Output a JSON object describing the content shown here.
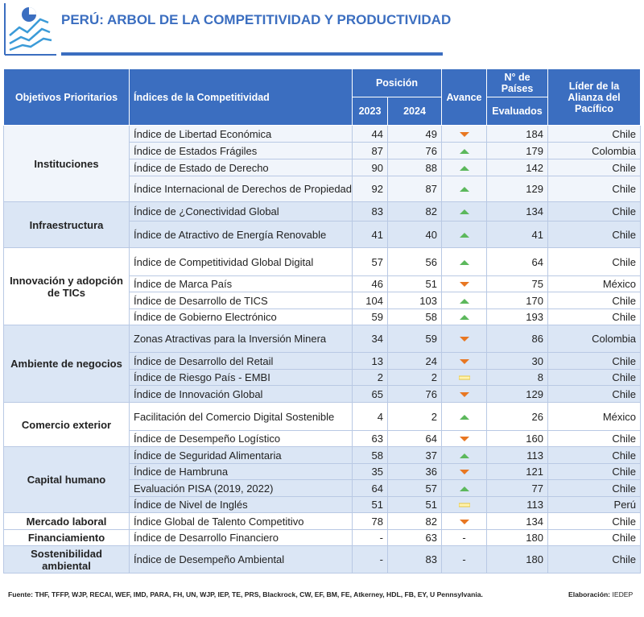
{
  "header": {
    "title": "PERÚ: ARBOL DE LA COMPETITIVIDAD Y PRODUCTIVIDAD"
  },
  "table": {
    "columns": {
      "objective": "Objetivos Prioritarios",
      "index": "Índices de la Competitividad",
      "position": "Posición",
      "y2023": "2023",
      "y2024": "2024",
      "avance": "Avance",
      "countries_top": "N° de Países",
      "countries_bottom": "Evaluados",
      "leader": "Líder de la Alianza del Pacífico"
    },
    "groups": [
      {
        "objective": "Instituciones",
        "rows": [
          {
            "index": "Índice de Libertad Económica",
            "y2023": 44,
            "y2024": 49,
            "countries": 184,
            "leader": "Chile"
          },
          {
            "index": "Índice de Estados Frágiles",
            "y2023": 87,
            "y2024": 76,
            "countries": 179,
            "leader": "Colombia"
          },
          {
            "index": "Índice de Estado de Derecho",
            "y2023": 90,
            "y2024": 88,
            "countries": 142,
            "leader": "Chile"
          },
          {
            "index": "Índice Internacional de Derechos de Propiedad",
            "y2023": 92,
            "y2024": 87,
            "countries": 129,
            "leader": "Chile"
          }
        ]
      },
      {
        "objective": "Infraestructura",
        "rows": [
          {
            "index": "Índice de ¿Conectividad Global",
            "y2023": 83,
            "y2024": 82,
            "countries": 134,
            "leader": "Chile"
          },
          {
            "index": "Índice de Atractivo de Energía Renovable",
            "y2023": 41,
            "y2024": 40,
            "countries": 41,
            "leader": "Chile"
          }
        ]
      },
      {
        "objective": "Innovación y adopción de TICs",
        "rows": [
          {
            "index": "Índice de Competitividad Global Digital",
            "y2023": 57,
            "y2024": 56,
            "countries": 64,
            "leader": "Chile"
          },
          {
            "index": "Índice de Marca País",
            "y2023": 46,
            "y2024": 51,
            "countries": 75,
            "leader": "México"
          },
          {
            "index": "Índice de Desarrollo de TICS",
            "y2023": 104,
            "y2024": 103,
            "countries": 170,
            "leader": "Chile"
          },
          {
            "index": "Índice de Gobierno Electrónico",
            "y2023": 59,
            "y2024": 58,
            "countries": 193,
            "leader": "Chile"
          }
        ]
      },
      {
        "objective": "Ambiente de negocios",
        "rows": [
          {
            "index": "Zonas Atractivas para la Inversión Minera",
            "y2023": 34,
            "y2024": 59,
            "countries": 86,
            "leader": "Colombia"
          },
          {
            "index": "Índice de Desarrollo del Retail",
            "y2023": 13,
            "y2024": 24,
            "countries": 30,
            "leader": "Chile"
          },
          {
            "index": "Índice de Riesgo País - EMBI",
            "y2023": 2,
            "y2024": 2,
            "countries": 8,
            "leader": "Chile"
          },
          {
            "index": "Índice de Innovación Global",
            "y2023": 65,
            "y2024": 76,
            "countries": 129,
            "leader": "Chile"
          }
        ]
      },
      {
        "objective": "Comercio exterior",
        "rows": [
          {
            "index": "Facilitación del Comercio Digital Sostenible",
            "y2023": 4,
            "y2024": 2,
            "countries": 26,
            "leader": "México"
          },
          {
            "index": "Índice de Desempeño Logístico",
            "y2023": 63,
            "y2024": 64,
            "countries": 160,
            "leader": "Chile"
          }
        ]
      },
      {
        "objective": "Capital humano",
        "rows": [
          {
            "index": "Índice de Seguridad Alimentaria",
            "y2023": 58,
            "y2024": 37,
            "countries": 113,
            "leader": "Chile"
          },
          {
            "index": "Índice de Hambruna",
            "y2023": 35,
            "y2024": 36,
            "countries": 121,
            "leader": "Chile"
          },
          {
            "index": "Evaluación PISA  (2019, 2022)",
            "y2023": 64,
            "y2024": 57,
            "countries": 77,
            "leader": "Chile"
          },
          {
            "index": "Índice de Nivel de Inglés",
            "y2023": 51,
            "y2024": 51,
            "countries": 113,
            "leader": "Perú"
          }
        ]
      },
      {
        "objective": "Mercado laboral",
        "rows": [
          {
            "index": "Índice Global de Talento Competitivo",
            "y2023": 78,
            "y2024": 82,
            "countries": 134,
            "leader": "Chile"
          }
        ]
      },
      {
        "objective": "Financiamiento",
        "rows": [
          {
            "index": "Índice de Desarrollo Financiero",
            "y2023": "-",
            "y2024": 63,
            "avance": "-",
            "countries": 180,
            "leader": "Chile"
          }
        ]
      },
      {
        "objective": "Sostenibilidad ambiental",
        "rows": [
          {
            "index": "Índice de Desempeño Ambiental",
            "y2023": "-",
            "y2024": 83,
            "avance": "-",
            "countries": 180,
            "leader": "Chile"
          }
        ]
      }
    ]
  },
  "footer": {
    "source": "Fuente: THF, TFFP, WJP, RECAI, WEF, IMD, PARA, FH, UN, WJP, IEP, TE, PRS, Blackrock, CW, EF, BM, FE, Atkerney, HDL, FB, EY, U Pennsylvania.",
    "credit_label": "Elaboración:",
    "credit": "IEDEP"
  }
}
